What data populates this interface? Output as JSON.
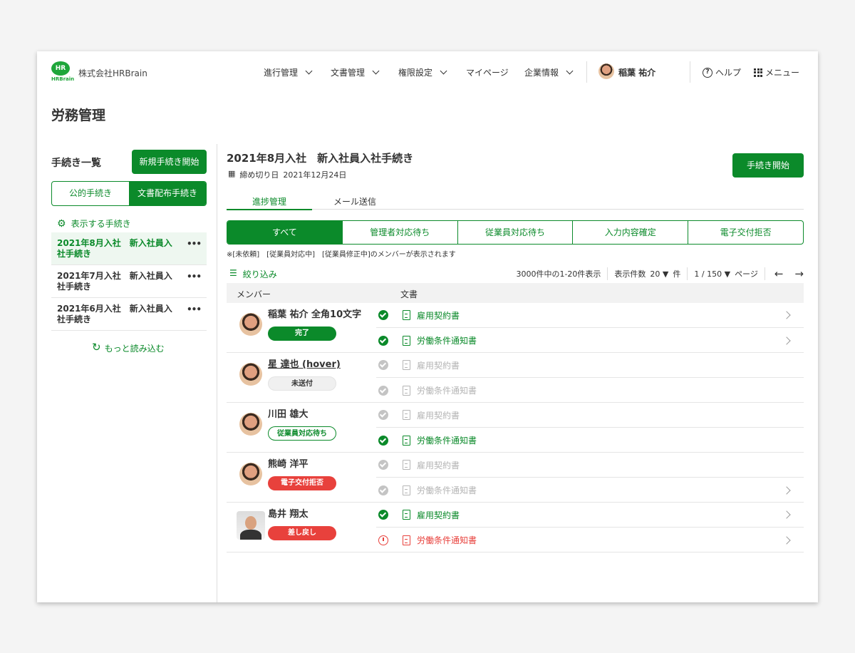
{
  "header": {
    "logo_text": "HR",
    "logo_sub": "HRBrain",
    "company": "株式会社HRBrain",
    "nav": [
      {
        "label": "進行管理"
      },
      {
        "label": "文書管理"
      },
      {
        "label": "権限設定"
      },
      {
        "label": "マイページ"
      },
      {
        "label": "企業情報"
      }
    ],
    "user_name": "稲葉 祐介",
    "help": "ヘルプ",
    "menu": "メニュー"
  },
  "page_title": "労務管理",
  "sidebar": {
    "title": "手続き一覧",
    "new_button": "新規手続き開始",
    "tabs": [
      "公的手続き",
      "文書配布手続き"
    ],
    "active_tab": 1,
    "display_setting": "表示する手続き",
    "items": [
      {
        "label": "2021年8月入社　新入社員入社手続き",
        "active": true
      },
      {
        "label": "2021年7月入社　新入社員入社手続き"
      },
      {
        "label": "2021年6月入社　新入社員入社手続き"
      }
    ],
    "load_more": "もっと読み込む"
  },
  "main": {
    "title": "2021年8月入社　新入社員入社手続き",
    "deadline_label": "締め切り日",
    "deadline": "2021年12月24日",
    "start_button": "手続き開始",
    "tabs": [
      "進捗管理",
      "メール送信"
    ],
    "filters": [
      "すべて",
      "管理者対応待ち",
      "従業員対応待ち",
      "入力内容確定",
      "電子交付拒否"
    ],
    "note": "※[未依頼]　[従業員対応中]　[従業員修正中]のメンバーが表示されます",
    "filter_label": "絞り込み",
    "count_text": "3000件中の1-20件表示",
    "per_page_label": "表示件数",
    "per_page": "20",
    "per_page_unit": "件",
    "page": "1 / 150",
    "page_unit": "ページ",
    "columns": [
      "メンバー",
      "文書"
    ],
    "members": [
      {
        "name": "稲葉 祐介 全角10文字",
        "status": "完了",
        "status_style": "done",
        "docs": [
          {
            "name": "雇用契約書",
            "state": "ok",
            "arrow": true
          },
          {
            "name": "労働条件通知書",
            "state": "ok",
            "arrow": true
          }
        ]
      },
      {
        "name": "星 達也 (hover)",
        "status": "未送付",
        "status_style": "none",
        "docs": [
          {
            "name": "雇用契約書",
            "state": "grey"
          },
          {
            "name": "労働条件通知書",
            "state": "grey"
          }
        ]
      },
      {
        "name": "川田 雄大",
        "status": "従業員対応待ち",
        "status_style": "wait",
        "docs": [
          {
            "name": "雇用契約書",
            "state": "grey"
          },
          {
            "name": "労働条件通知書",
            "state": "ok"
          }
        ]
      },
      {
        "name": "熊崎 洋平",
        "status": "電子交付拒否",
        "status_style": "red",
        "docs": [
          {
            "name": "雇用契約書",
            "state": "grey"
          },
          {
            "name": "労働条件通知書",
            "state": "grey",
            "arrow": true
          }
        ]
      },
      {
        "name": "島井 翔太",
        "status": "差し戻し",
        "status_style": "red",
        "docs": [
          {
            "name": "雇用契約書",
            "state": "ok",
            "arrow": true
          },
          {
            "name": "労働条件通知書",
            "state": "err",
            "arrow": true
          }
        ]
      }
    ]
  },
  "colors": {
    "accent": "#0b8a2a",
    "error": "#e8413c",
    "muted": "#bdbdbd"
  }
}
